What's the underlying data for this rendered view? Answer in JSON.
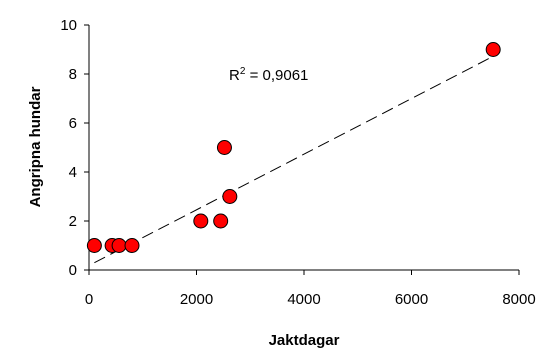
{
  "chart_data": {
    "type": "scatter",
    "title": "",
    "xlabel": "Jaktdagar",
    "ylabel": "Angripna hundar",
    "xlim": [
      0,
      8000
    ],
    "ylim": [
      0,
      10
    ],
    "x_ticks": [
      0,
      2000,
      4000,
      6000,
      8000
    ],
    "y_ticks": [
      0,
      2,
      4,
      6,
      8,
      10
    ],
    "x_tick_labels": [
      "0",
      "2000",
      "4000",
      "6000",
      "8000"
    ],
    "y_tick_labels": [
      "0",
      "2",
      "4",
      "6",
      "8",
      "10"
    ],
    "grid": false,
    "legend": "none",
    "marker_color": "#ff0000",
    "marker_edge": "#000000",
    "trendline": {
      "style": "dashed",
      "x": [
        100,
        7500
      ],
      "y": [
        0.3,
        8.7
      ]
    },
    "annotation": {
      "r_text": "R",
      "r_sup": "2",
      "r_value": " = 0,9061"
    },
    "points": [
      {
        "x": 100,
        "y": 1
      },
      {
        "x": 430,
        "y": 1
      },
      {
        "x": 560,
        "y": 1
      },
      {
        "x": 800,
        "y": 1
      },
      {
        "x": 2080,
        "y": 2
      },
      {
        "x": 2450,
        "y": 2
      },
      {
        "x": 2520,
        "y": 5
      },
      {
        "x": 2620,
        "y": 3
      },
      {
        "x": 7520,
        "y": 9
      }
    ]
  }
}
